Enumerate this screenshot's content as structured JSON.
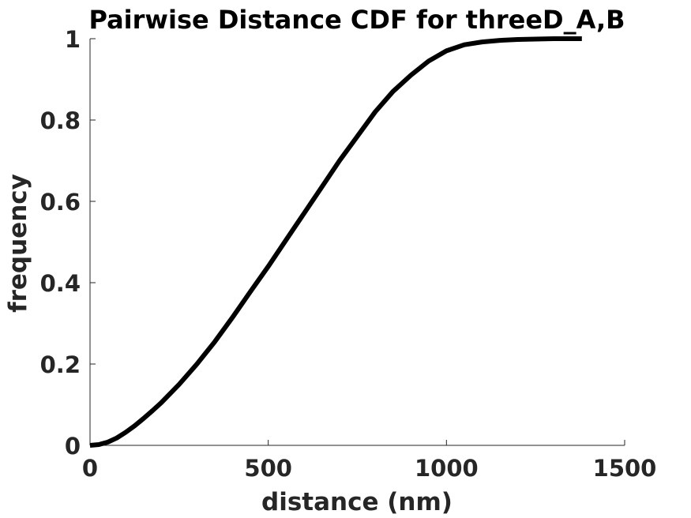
{
  "chart_data": {
    "type": "line",
    "title": "Pairwise Distance CDF for threeD_A,B",
    "xlabel": "distance (nm)",
    "ylabel": "frequency",
    "xlim": [
      0,
      1500
    ],
    "ylim": [
      0,
      1
    ],
    "xticks": [
      0,
      500,
      1000,
      1500
    ],
    "xtick_labels": [
      "0",
      "500",
      "1000",
      "1500"
    ],
    "yticks": [
      0,
      0.2,
      0.4,
      0.6,
      0.8,
      1
    ],
    "ytick_labels": [
      "0",
      "0.2",
      "0.4",
      "0.6",
      "0.8",
      "1"
    ],
    "grid": false,
    "series": [
      {
        "color": "#000000",
        "x": [
          0,
          25,
          50,
          75,
          100,
          125,
          150,
          175,
          200,
          250,
          300,
          350,
          400,
          450,
          500,
          550,
          600,
          650,
          700,
          750,
          800,
          850,
          900,
          950,
          1000,
          1050,
          1100,
          1150,
          1200,
          1250,
          1300,
          1380
        ],
        "y": [
          0.0,
          0.002,
          0.008,
          0.018,
          0.032,
          0.048,
          0.066,
          0.085,
          0.105,
          0.15,
          0.2,
          0.255,
          0.315,
          0.378,
          0.44,
          0.505,
          0.57,
          0.635,
          0.7,
          0.76,
          0.82,
          0.87,
          0.91,
          0.945,
          0.97,
          0.985,
          0.992,
          0.996,
          0.998,
          0.999,
          1.0,
          1.0
        ]
      }
    ]
  }
}
